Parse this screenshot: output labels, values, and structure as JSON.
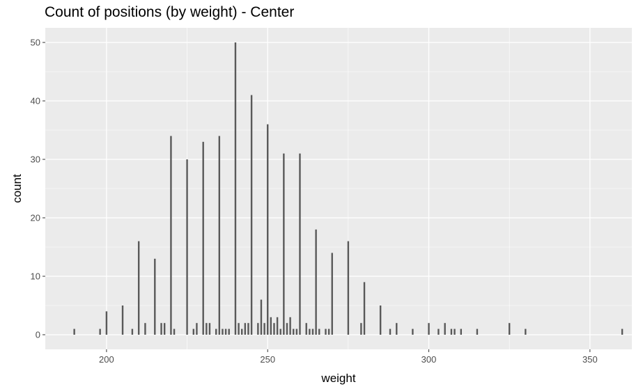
{
  "chart_data": {
    "type": "bar",
    "title": "Count of positions (by weight) - Center",
    "xlabel": "weight",
    "ylabel": "count",
    "xlim": [
      181,
      363
    ],
    "ylim": [
      -2.5,
      52.5
    ],
    "x_ticks": [
      200,
      250,
      300,
      350
    ],
    "y_ticks": [
      0,
      10,
      20,
      30,
      40,
      50
    ],
    "grid": true,
    "colors": {
      "panel": "#ebebeb",
      "grid": "#ffffff",
      "bar": "#595959"
    },
    "points": [
      {
        "x": 190,
        "y": 1
      },
      {
        "x": 198,
        "y": 1
      },
      {
        "x": 200,
        "y": 4
      },
      {
        "x": 205,
        "y": 5
      },
      {
        "x": 208,
        "y": 1
      },
      {
        "x": 210,
        "y": 16
      },
      {
        "x": 212,
        "y": 2
      },
      {
        "x": 215,
        "y": 13
      },
      {
        "x": 217,
        "y": 2
      },
      {
        "x": 218,
        "y": 2
      },
      {
        "x": 220,
        "y": 34
      },
      {
        "x": 221,
        "y": 1
      },
      {
        "x": 225,
        "y": 30
      },
      {
        "x": 227,
        "y": 1
      },
      {
        "x": 228,
        "y": 2
      },
      {
        "x": 230,
        "y": 33
      },
      {
        "x": 231,
        "y": 2
      },
      {
        "x": 232,
        "y": 2
      },
      {
        "x": 234,
        "y": 1
      },
      {
        "x": 235,
        "y": 34
      },
      {
        "x": 236,
        "y": 1
      },
      {
        "x": 237,
        "y": 1
      },
      {
        "x": 238,
        "y": 1
      },
      {
        "x": 240,
        "y": 50
      },
      {
        "x": 241,
        "y": 2
      },
      {
        "x": 242,
        "y": 1
      },
      {
        "x": 243,
        "y": 2
      },
      {
        "x": 244,
        "y": 2
      },
      {
        "x": 245,
        "y": 41
      },
      {
        "x": 247,
        "y": 2
      },
      {
        "x": 248,
        "y": 6
      },
      {
        "x": 249,
        "y": 2
      },
      {
        "x": 250,
        "y": 36
      },
      {
        "x": 251,
        "y": 3
      },
      {
        "x": 252,
        "y": 2
      },
      {
        "x": 253,
        "y": 3
      },
      {
        "x": 254,
        "y": 1
      },
      {
        "x": 255,
        "y": 31
      },
      {
        "x": 256,
        "y": 2
      },
      {
        "x": 257,
        "y": 3
      },
      {
        "x": 258,
        "y": 1
      },
      {
        "x": 259,
        "y": 1
      },
      {
        "x": 260,
        "y": 31
      },
      {
        "x": 262,
        "y": 2
      },
      {
        "x": 263,
        "y": 1
      },
      {
        "x": 264,
        "y": 1
      },
      {
        "x": 265,
        "y": 18
      },
      {
        "x": 266,
        "y": 1
      },
      {
        "x": 268,
        "y": 1
      },
      {
        "x": 269,
        "y": 1
      },
      {
        "x": 270,
        "y": 14
      },
      {
        "x": 275,
        "y": 16
      },
      {
        "x": 279,
        "y": 2
      },
      {
        "x": 280,
        "y": 9
      },
      {
        "x": 285,
        "y": 5
      },
      {
        "x": 288,
        "y": 1
      },
      {
        "x": 290,
        "y": 2
      },
      {
        "x": 295,
        "y": 1
      },
      {
        "x": 300,
        "y": 2
      },
      {
        "x": 303,
        "y": 1
      },
      {
        "x": 305,
        "y": 2
      },
      {
        "x": 307,
        "y": 1
      },
      {
        "x": 308,
        "y": 1
      },
      {
        "x": 310,
        "y": 1
      },
      {
        "x": 315,
        "y": 1
      },
      {
        "x": 325,
        "y": 2
      },
      {
        "x": 330,
        "y": 1
      },
      {
        "x": 360,
        "y": 1
      }
    ]
  }
}
